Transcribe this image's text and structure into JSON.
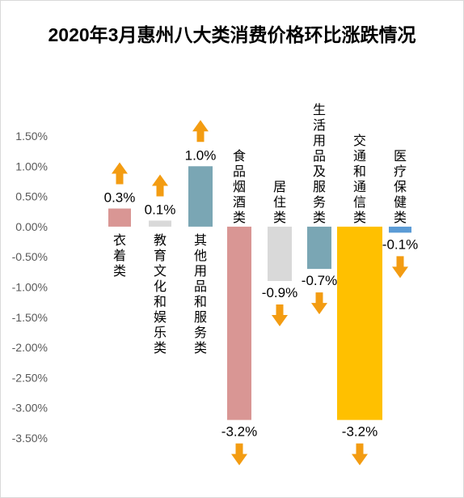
{
  "chart_data": {
    "type": "bar",
    "title": "2020年3月惠州八大类消费价格环比涨跌情况",
    "xlabel": "",
    "ylabel": "",
    "ylim": [
      -3.5,
      1.5
    ],
    "yticks": [
      1.5,
      1.0,
      0.5,
      0.0,
      -0.5,
      -1.0,
      -1.5,
      -2.0,
      -2.5,
      -3.0,
      -3.5
    ],
    "ytick_labels": [
      "1.50%",
      "1.00%",
      "0.50%",
      "0.00%",
      "-0.50%",
      "-1.00%",
      "-1.50%",
      "-2.00%",
      "-2.50%",
      "-3.00%",
      "-3.50%"
    ],
    "grid": false,
    "legend": "none",
    "categories": [
      "衣着类",
      "教育文化和娱乐类",
      "其他用品和服务类",
      "食品烟酒类",
      "居住类",
      "生活用品及服务类",
      "交通和通信类",
      "医疗保健类"
    ],
    "values": [
      0.3,
      0.1,
      1.0,
      -3.2,
      -0.9,
      -0.7,
      -3.2,
      -0.1
    ],
    "value_labels": [
      "0.3%",
      "0.1%",
      "1.0%",
      "-3.2%",
      "-0.9%",
      "-0.7%",
      "-3.2%",
      "-0.1%"
    ],
    "colors": [
      "#d99694",
      "#d9d9d9",
      "#7aa6b4",
      "#d99694",
      "#d9d9d9",
      "#7aa6b4",
      "#ffc000",
      "#5b9bd5"
    ],
    "arrow_color": "#f39c12",
    "arrows": [
      "up",
      "up",
      "up",
      "down",
      "down",
      "down",
      "down",
      "down"
    ]
  }
}
